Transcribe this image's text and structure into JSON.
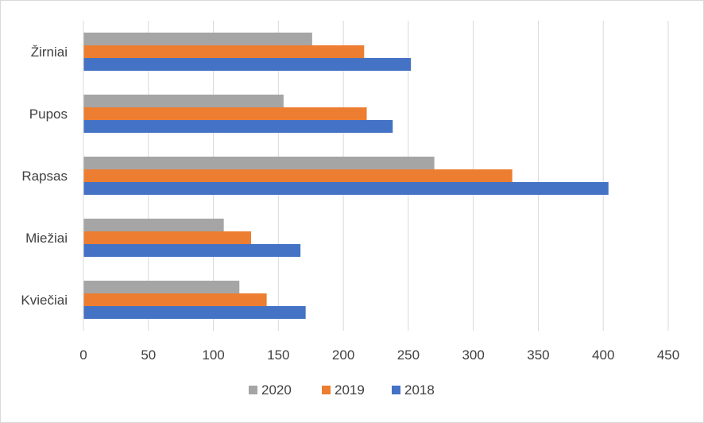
{
  "chart_data": {
    "type": "bar",
    "orientation": "horizontal",
    "categories": [
      "Kviečiai",
      "Miežiai",
      "Rapsas",
      "Pupos",
      "Žirniai"
    ],
    "series": [
      {
        "name": "2018",
        "color": "#4472C4",
        "values": [
          171,
          167,
          404,
          238,
          252
        ]
      },
      {
        "name": "2019",
        "color": "#ED7D31",
        "values": [
          141,
          129,
          330,
          218,
          216
        ]
      },
      {
        "name": "2020",
        "color": "#A5A5A5",
        "values": [
          120,
          108,
          270,
          154,
          176
        ]
      }
    ],
    "xlim": [
      0,
      450
    ],
    "xticks": [
      0,
      50,
      100,
      150,
      200,
      250,
      300,
      350,
      400,
      450
    ],
    "grid": true,
    "legend_position": "bottom",
    "legend_order": [
      "2020",
      "2019",
      "2018"
    ],
    "gridline_color": "#d9d9d9"
  }
}
